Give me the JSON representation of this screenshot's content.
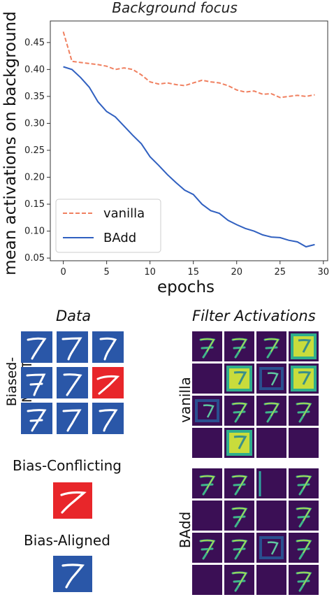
{
  "chart_data": {
    "type": "line",
    "title": "Background focus",
    "xlabel": "epochs",
    "ylabel": "mean activations on background",
    "xlim": [
      -1.5,
      30.5
    ],
    "ylim": [
      0.045,
      0.49
    ],
    "xticks": [
      0,
      5,
      10,
      15,
      20,
      25,
      30
    ],
    "yticks": [
      0.05,
      0.1,
      0.15,
      0.2,
      0.25,
      0.3,
      0.35,
      0.4,
      0.45
    ],
    "grid": false,
    "legend_position": "bottom-left",
    "x": [
      0,
      1,
      2,
      3,
      4,
      5,
      6,
      7,
      8,
      9,
      10,
      11,
      12,
      13,
      14,
      15,
      16,
      17,
      18,
      19,
      20,
      21,
      22,
      23,
      24,
      25,
      26,
      27,
      28,
      29
    ],
    "series": [
      {
        "name": "vanilla",
        "color": "#f08060",
        "style": "dashed",
        "values": [
          0.47,
          0.415,
          0.413,
          0.411,
          0.409,
          0.406,
          0.4,
          0.403,
          0.4,
          0.39,
          0.377,
          0.373,
          0.375,
          0.372,
          0.37,
          0.375,
          0.38,
          0.377,
          0.375,
          0.37,
          0.362,
          0.358,
          0.36,
          0.354,
          0.355,
          0.348,
          0.35,
          0.352,
          0.35,
          0.353
        ]
      },
      {
        "name": "BAdd",
        "color": "#3060c0",
        "style": "solid",
        "values": [
          0.405,
          0.4,
          0.385,
          0.367,
          0.34,
          0.322,
          0.312,
          0.295,
          0.278,
          0.262,
          0.238,
          0.222,
          0.205,
          0.19,
          0.176,
          0.168,
          0.15,
          0.138,
          0.133,
          0.12,
          0.112,
          0.105,
          0.1,
          0.093,
          0.089,
          0.088,
          0.083,
          0.08,
          0.071,
          0.075
        ]
      }
    ]
  },
  "data_panel": {
    "title": "Data",
    "grid_label": "Biased-MNIST",
    "conflicting_label": "Bias-Conflicting",
    "aligned_label": "Bias-Aligned",
    "grid_colors": [
      "blue",
      "blue",
      "blue",
      "blue",
      "blue",
      "red",
      "blue",
      "blue",
      "blue"
    ]
  },
  "filters_panel": {
    "title": "Filter Activations",
    "vanilla_label": "vanilla",
    "badd_label": "BAdd"
  },
  "colors": {
    "tile_blue": "#2a57a8",
    "tile_red": "#e8262a",
    "activation_bg": "#3b0f55"
  }
}
